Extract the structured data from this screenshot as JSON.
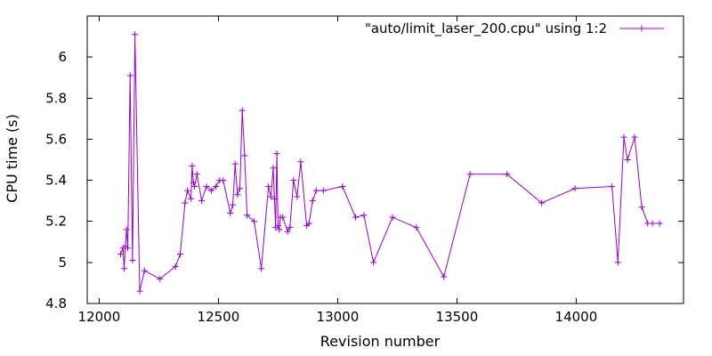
{
  "chart_data": {
    "type": "line",
    "title": "",
    "xlabel": "Revision number",
    "ylabel": "CPU time (s)",
    "xlim": [
      11950,
      14450
    ],
    "ylim": [
      4.8,
      6.2
    ],
    "xticks": [
      12000,
      12500,
      13000,
      13500,
      14000
    ],
    "xtick_labels": [
      "12000",
      "12500",
      "13000",
      "13500",
      "14000"
    ],
    "yticks": [
      4.8,
      5.0,
      5.2,
      5.4,
      5.6,
      5.8,
      6.0
    ],
    "ytick_labels": [
      "4.8",
      "5",
      "5.2",
      "5.4",
      "5.6",
      "5.8",
      "6"
    ],
    "grid": false,
    "legend_position": "top-right",
    "series_color": "#9400d3",
    "series": [
      {
        "name": "\"auto/limit_laser_200.cpu\" using 1:2",
        "x": [
          12090,
          12100,
          12105,
          12110,
          12115,
          12120,
          12130,
          12140,
          12150,
          12170,
          12190,
          12255,
          12320,
          12340,
          12360,
          12370,
          12385,
          12390,
          12395,
          12400,
          12410,
          12430,
          12450,
          12470,
          12490,
          12505,
          12520,
          12550,
          12560,
          12570,
          12580,
          12590,
          12600,
          12610,
          12620,
          12650,
          12680,
          12710,
          12720,
          12730,
          12735,
          12740,
          12745,
          12750,
          12755,
          12760,
          12770,
          12790,
          12800,
          12815,
          12830,
          12845,
          12870,
          12880,
          12895,
          12910,
          12940,
          13020,
          13075,
          13110,
          13150,
          13230,
          13330,
          13445,
          13555,
          13710,
          13855,
          13995,
          14150,
          14175,
          14200,
          14215,
          14245,
          14275,
          14300,
          14320,
          14350
        ],
        "y": [
          5.04,
          5.07,
          4.97,
          5.08,
          5.16,
          5.07,
          5.91,
          5.01,
          6.11,
          4.86,
          4.96,
          4.92,
          4.98,
          5.04,
          5.29,
          5.35,
          5.31,
          5.47,
          5.39,
          5.37,
          5.43,
          5.3,
          5.37,
          5.35,
          5.37,
          5.4,
          5.4,
          5.24,
          5.28,
          5.48,
          5.33,
          5.36,
          5.74,
          5.52,
          5.23,
          5.2,
          4.97,
          5.37,
          5.32,
          5.46,
          5.31,
          5.17,
          5.53,
          5.18,
          5.16,
          5.22,
          5.22,
          5.15,
          5.17,
          5.4,
          5.32,
          5.49,
          5.18,
          5.19,
          5.3,
          5.35,
          5.35,
          5.37,
          5.22,
          5.23,
          5.0,
          5.22,
          5.17,
          4.93,
          5.43,
          5.43,
          5.29,
          5.36,
          5.37,
          5.0,
          5.61,
          5.5,
          5.61,
          5.27,
          5.19,
          5.19,
          5.19
        ]
      }
    ]
  }
}
